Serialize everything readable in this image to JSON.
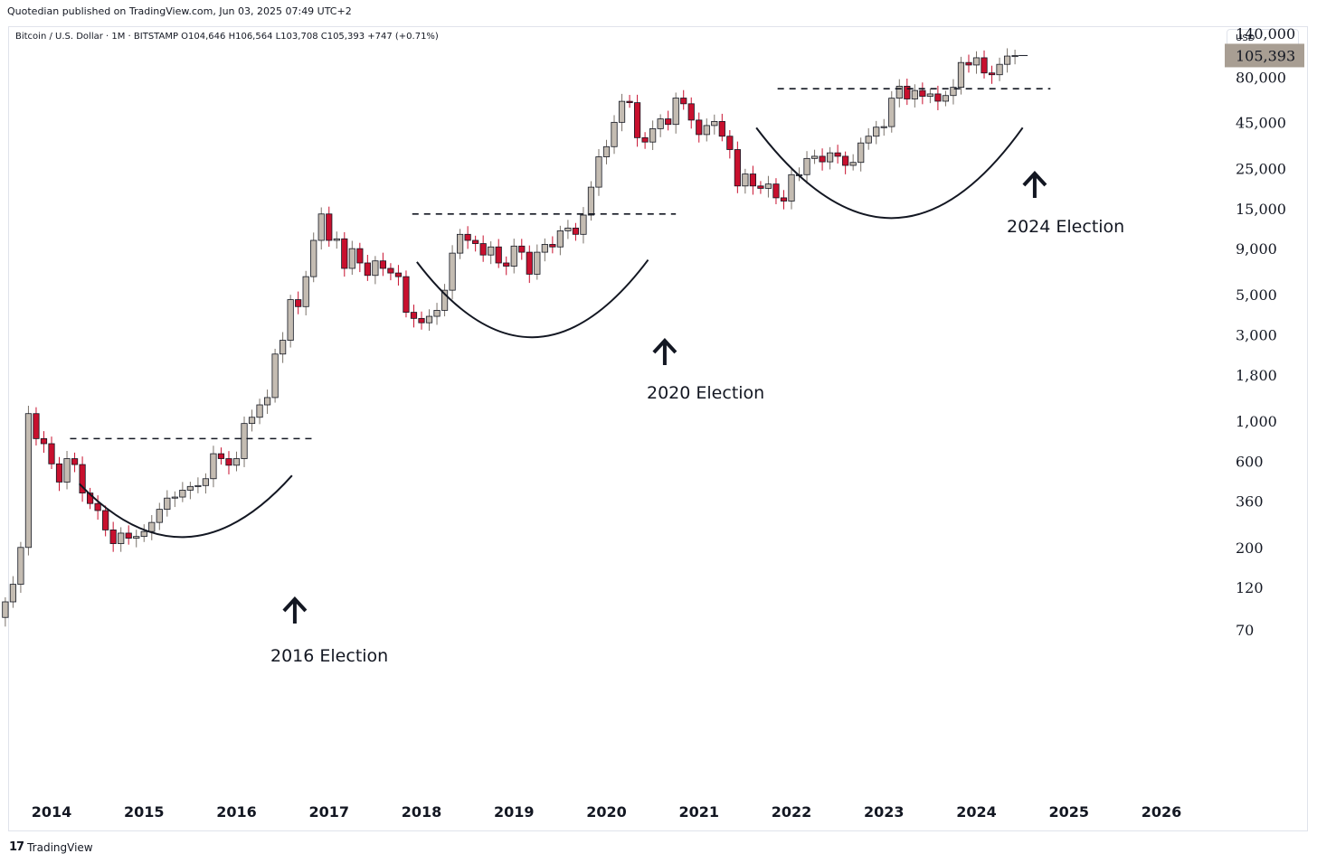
{
  "header": {
    "published": "Quotedian published on TradingView.com, Jun 03, 2025 07:49 UTC+2",
    "legend": "Bitcoin / U.S. Dollar · 1M · BITSTAMP  O104,646  H106,564  L103,708  C105,393  +747 (+0.71%)",
    "currency": "USD"
  },
  "footer": {
    "logo_mark": "17",
    "brand": "TradingView"
  },
  "colors": {
    "up": "#c4bcb2",
    "down": "#c8102e",
    "border": "#131722",
    "price_badge": "#a89e93"
  },
  "chart_data": {
    "type": "candlestick",
    "scale": "log",
    "y_ticks": [
      140000,
      80000,
      45000,
      25000,
      15000,
      9000,
      5000,
      3000,
      1800,
      1000,
      600,
      360,
      200,
      120,
      70
    ],
    "y_tick_labels": [
      "140,000",
      "80,000",
      "45,000",
      "25,000",
      "15,000",
      "9,000",
      "5,000",
      "3,000",
      "1,800",
      "1,000",
      "600",
      "360",
      "200",
      "120",
      "70"
    ],
    "x_ticks": [
      2014,
      2015,
      2016,
      2017,
      2018,
      2019,
      2020,
      2021,
      2022,
      2023,
      2024,
      2025,
      2026
    ],
    "x_tick_labels": [
      "2014",
      "2015",
      "2016",
      "2017",
      "2018",
      "2019",
      "2020",
      "2021",
      "2022",
      "2023",
      "2024",
      "2025",
      "2026"
    ],
    "last_price_label": "105,393",
    "last_price": 105393,
    "series_start": 2013.5,
    "close": [
      100,
      125,
      200,
      1100,
      800,
      750,
      580,
      460,
      620,
      575,
      400,
      350,
      320,
      250,
      210,
      240,
      225,
      230,
      245,
      275,
      325,
      375,
      380,
      415,
      435,
      440,
      480,
      660,
      620,
      570,
      620,
      970,
      1050,
      1230,
      1350,
      2350,
      2800,
      4700,
      4300,
      6300,
      10000,
      14000,
      10000,
      10200,
      7000,
      9000,
      7500,
      6400,
      7700,
      7000,
      6600,
      6300,
      4000,
      3700,
      3500,
      3800,
      4100,
      5300,
      8500,
      10800,
      10000,
      9600,
      8300,
      9200,
      7500,
      7200,
      9300,
      8600,
      6500,
      8600,
      9500,
      9200,
      11300,
      11700,
      10800,
      13800,
      19700,
      29000,
      33000,
      45000,
      58800,
      57800,
      37000,
      35000,
      41500,
      47000,
      43800,
      61300,
      57000,
      46300,
      38500,
      43200,
      45500,
      37700,
      31800,
      20000,
      23300,
      20000,
      19400,
      20500,
      17200,
      16500,
      23100,
      23100,
      28400,
      29200,
      27200,
      30500,
      29200,
      26000,
      27000,
      34600,
      37700,
      42300,
      42600,
      61200,
      71300,
      60600,
      67500,
      62700,
      64600,
      58900,
      63300,
      70300,
      96400,
      93400,
      102400,
      84400,
      82500,
      94200,
      104646,
      105393
    ],
    "annotations": [
      {
        "label": "2016 Election",
        "year": 2016.85
      },
      {
        "label": "2020 Election",
        "year": 2020.85
      },
      {
        "label": "2024 Election",
        "year": 2024.85
      }
    ],
    "resistance_levels": [
      {
        "value": 800,
        "from": 2014.2,
        "to": 2016.85
      },
      {
        "value": 14000,
        "from": 2017.9,
        "to": 2020.75
      },
      {
        "value": 69000,
        "from": 2021.85,
        "to": 2024.8
      }
    ]
  }
}
